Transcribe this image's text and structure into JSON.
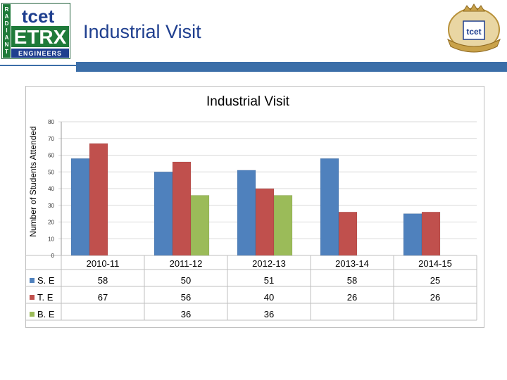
{
  "header": {
    "title": "Industrial Visit",
    "logo_left": {
      "vertical_text": "RADIANT",
      "top_text": "tcet",
      "main_text": "ETRX",
      "bottom_text": "ENGINEERS"
    },
    "logo_right": {
      "text": "tcet"
    }
  },
  "colors": {
    "accent": "#3b6ea8",
    "series_se": "#4f81bd",
    "series_te": "#c0504d",
    "series_be": "#9bbb59"
  },
  "chart_data": {
    "type": "bar",
    "title": "Industrial Visit",
    "ylabel": "Number of Students Attended",
    "xlabel": "",
    "ylim": [
      0,
      80
    ],
    "yticks": [
      "0",
      "10",
      "20",
      "30",
      "40",
      "50",
      "60",
      "70",
      "80"
    ],
    "categories": [
      "2010-11",
      "2011-12",
      "2012-13",
      "2013-14",
      "2014-15"
    ],
    "series": [
      {
        "name": "S. E",
        "values": [
          58,
          50,
          51,
          58,
          25
        ],
        "color": "#4f81bd"
      },
      {
        "name": "T. E",
        "values": [
          67,
          56,
          40,
          26,
          26
        ],
        "color": "#c0504d"
      },
      {
        "name": "B. E",
        "values": [
          null,
          36,
          36,
          null,
          null
        ],
        "color": "#9bbb59"
      }
    ],
    "data_table": {
      "rows": [
        {
          "label": "S. E",
          "cells": [
            "58",
            "50",
            "51",
            "58",
            "25"
          ]
        },
        {
          "label": "T. E",
          "cells": [
            "67",
            "56",
            "40",
            "26",
            "26"
          ]
        },
        {
          "label": "B. E",
          "cells": [
            "",
            "36",
            "36",
            "",
            ""
          ]
        }
      ]
    },
    "grid": true,
    "legend": "data-table"
  }
}
